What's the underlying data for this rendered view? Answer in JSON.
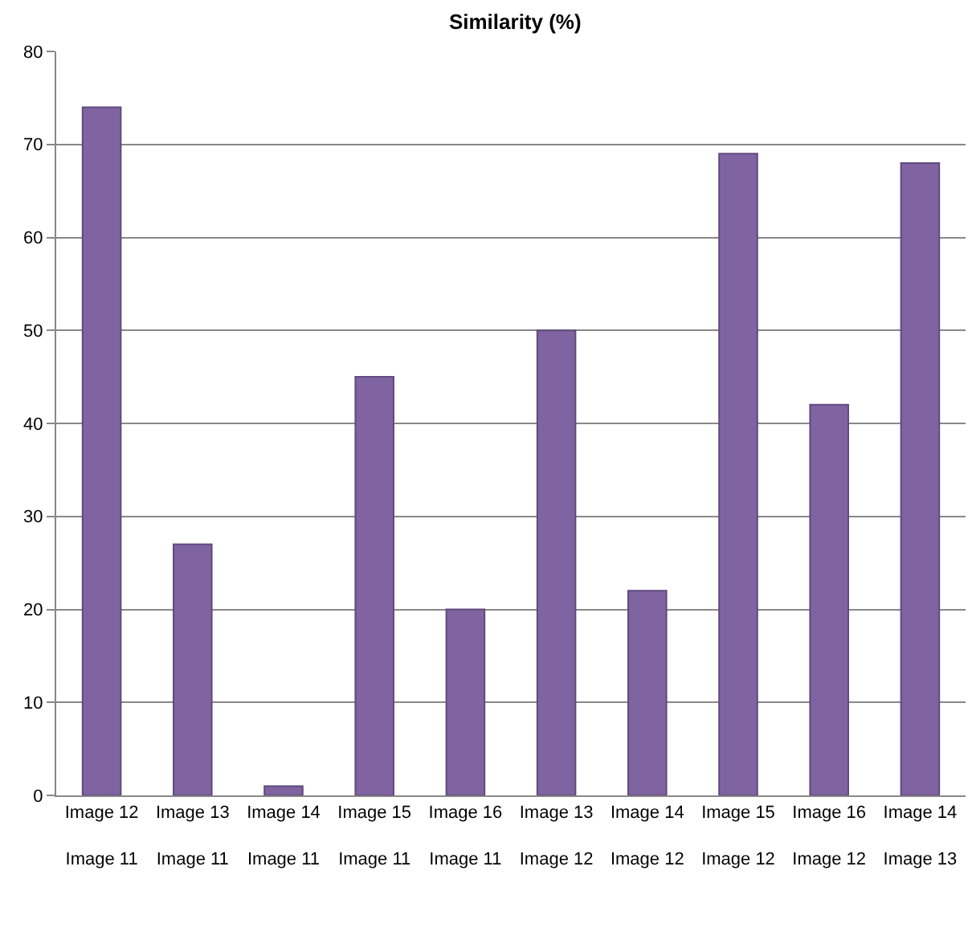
{
  "chart_data": {
    "type": "bar",
    "title": "Similarity (%)",
    "categories": [
      "Image 12\nImage 11",
      "Image 13\nImage 11",
      "Image 14\nImage 11",
      "Image 15\nImage 11",
      "Image 16\nImage 11",
      "Image 13\nImage 12",
      "Image 14\nImage 12",
      "Image 15\nImage 12",
      "Image 16\nImage 12",
      "Image 14\nImage 13"
    ],
    "values": [
      74,
      27,
      1,
      45,
      20,
      50,
      22,
      69,
      42,
      68
    ],
    "color": "#8064a2",
    "ylim": [
      0,
      80
    ],
    "yticks": [
      0,
      10,
      20,
      30,
      40,
      50,
      60,
      70,
      80
    ],
    "grid": "y",
    "legend": false
  }
}
